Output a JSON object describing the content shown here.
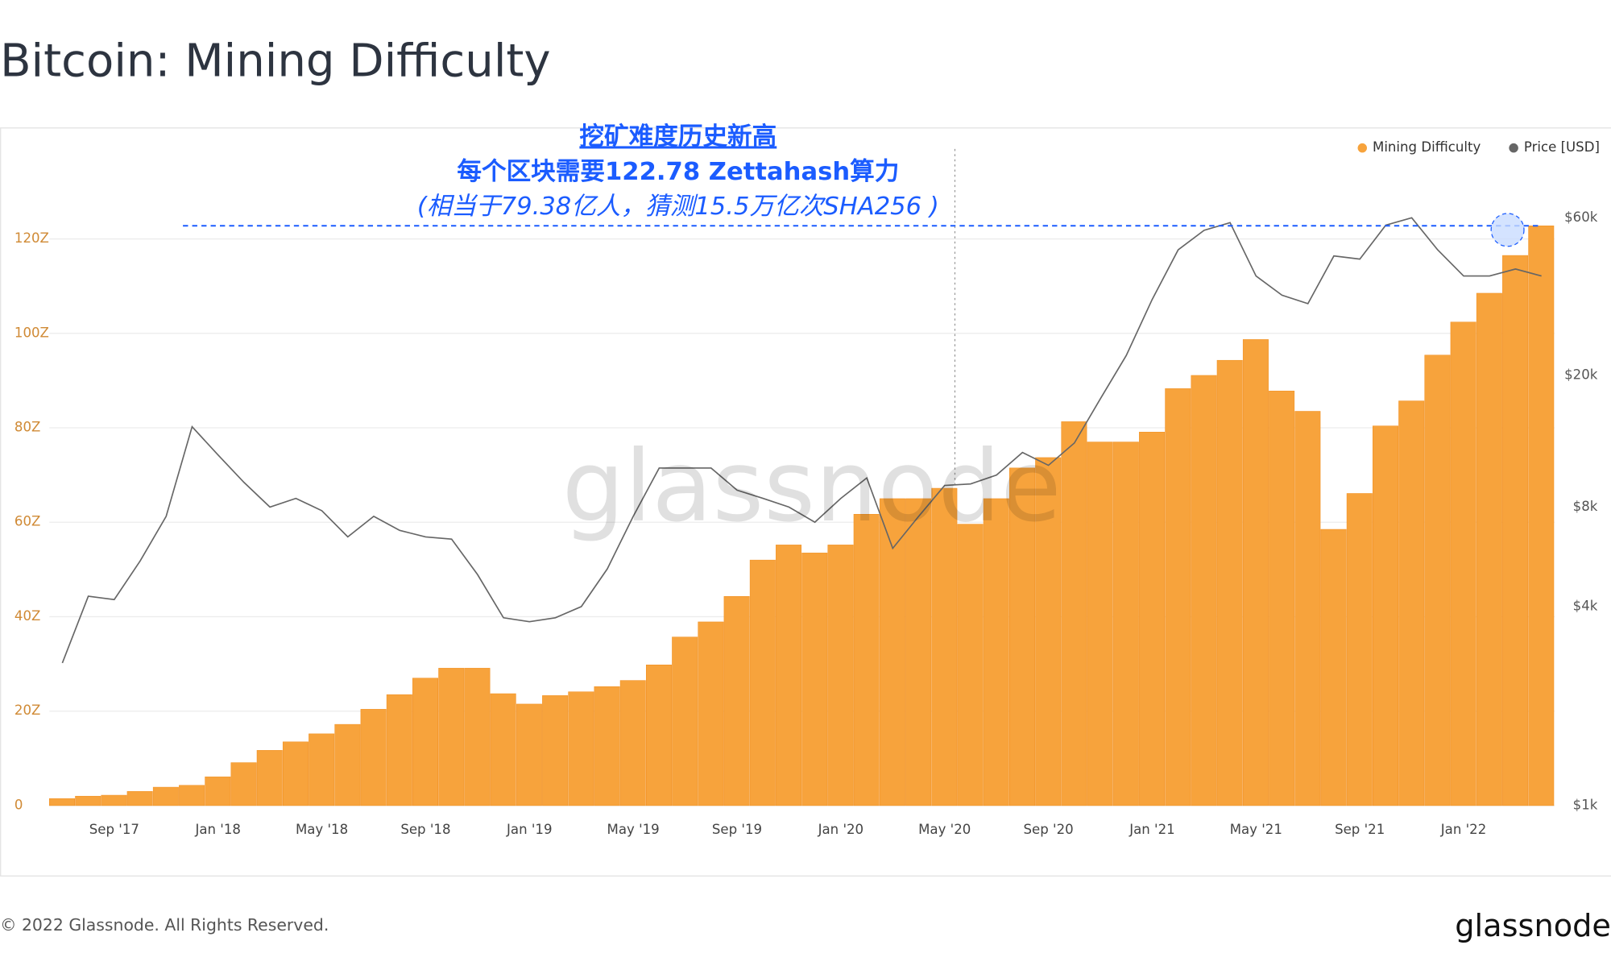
{
  "chart_data": {
    "type": "bar",
    "title": "Bitcoin: Mining Difficulty",
    "annotation": {
      "title": "挖矿难度历史新高",
      "line1": "每个区块需要122.78 Zettahash算力",
      "line2": "(相当于79.38亿人，猜测15.5万亿次SHA256 )"
    },
    "watermark": "glassnode",
    "footer": "© 2022 Glassnode. All Rights Reserved.",
    "logo": "glassnode",
    "legend": "top-right",
    "grid": true,
    "y2scale": "log",
    "x": [
      "2017-07",
      "2017-08",
      "2017-09",
      "2017-10",
      "2017-11",
      "2017-12",
      "2018-01",
      "2018-02",
      "2018-03",
      "2018-04",
      "2018-05",
      "2018-06",
      "2018-07",
      "2018-08",
      "2018-09",
      "2018-10",
      "2018-11",
      "2018-12",
      "2019-01",
      "2019-02",
      "2019-03",
      "2019-04",
      "2019-05",
      "2019-06",
      "2019-07",
      "2019-08",
      "2019-09",
      "2019-10",
      "2019-11",
      "2019-12",
      "2020-01",
      "2020-02",
      "2020-03",
      "2020-04",
      "2020-05",
      "2020-06",
      "2020-07",
      "2020-08",
      "2020-09",
      "2020-10",
      "2020-11",
      "2020-12",
      "2021-01",
      "2021-02",
      "2021-03",
      "2021-04",
      "2021-05",
      "2021-06",
      "2021-07",
      "2021-08",
      "2021-09",
      "2021-10",
      "2021-11",
      "2021-12",
      "2022-01",
      "2022-02",
      "2022-03",
      "2022-04"
    ],
    "series": [
      {
        "name": "Mining Difficulty",
        "color": "#f7a33c",
        "values": [
          1.5,
          2,
          2.2,
          3,
          3.9,
          4.3,
          6.1,
          9.1,
          11.7,
          13.5,
          15.2,
          17.2,
          20.4,
          23.5,
          27,
          29.1,
          29.1,
          23.7,
          21.5,
          23.3,
          24.1,
          25.2,
          26.5,
          29.8,
          35.7,
          38.9,
          44.3,
          52,
          55.2,
          53.5,
          55.2,
          61.7,
          65,
          65,
          67.2,
          59.6,
          65,
          71.5,
          73.7,
          81.3,
          77,
          77,
          79.1,
          88.3,
          91.1,
          94.3,
          98.7,
          87.8,
          83.5,
          58.5,
          66.1,
          80.4,
          85.7,
          95.4,
          102.4,
          108.5,
          116.5,
          122.78
        ]
      },
      {
        "name": "Price [USD]",
        "color": "#666666",
        "type": "line",
        "axis": "y2",
        "values": [
          2700,
          4300,
          4200,
          5500,
          7500,
          14000,
          11500,
          9500,
          8000,
          8500,
          7800,
          6500,
          7500,
          6800,
          6500,
          6400,
          5000,
          3700,
          3600,
          3700,
          4000,
          5200,
          7500,
          10500,
          10500,
          10500,
          9000,
          8500,
          8000,
          7200,
          8500,
          9800,
          6000,
          7500,
          9300,
          9400,
          10000,
          11700,
          10700,
          12500,
          17000,
          23000,
          34000,
          48000,
          55000,
          58000,
          40000,
          35000,
          33000,
          46000,
          45000,
          57000,
          60000,
          48000,
          40000,
          40000,
          42000,
          40000
        ]
      }
    ],
    "ylim": [
      0,
      140
    ],
    "yticks": [
      0,
      {
        "value": 20,
        "label": "20Z"
      },
      {
        "value": 40,
        "label": "40Z"
      },
      {
        "value": 60,
        "label": "60Z"
      },
      {
        "value": 80,
        "label": "80Z"
      },
      {
        "value": 100,
        "label": "100Z"
      },
      {
        "value": 120,
        "label": "120Z"
      }
    ],
    "y2lim": [
      1000,
      100000
    ],
    "y2ticks": [
      {
        "value": 1000,
        "label": "$1k"
      },
      {
        "value": 4000,
        "label": "$4k"
      },
      {
        "value": 8000,
        "label": "$8k"
      },
      {
        "value": 20000,
        "label": "$20k"
      },
      {
        "value": 60000,
        "label": "$60k"
      }
    ],
    "xticks": [
      {
        "value": "2017-09",
        "label": "Sep '17"
      },
      {
        "value": "2018-01",
        "label": "Jan '18"
      },
      {
        "value": "2018-05",
        "label": "May '18"
      },
      {
        "value": "2018-09",
        "label": "Sep '18"
      },
      {
        "value": "2019-01",
        "label": "Jan '19"
      },
      {
        "value": "2019-05",
        "label": "May '19"
      },
      {
        "value": "2019-09",
        "label": "Sep '19"
      },
      {
        "value": "2020-01",
        "label": "Jan '20"
      },
      {
        "value": "2020-05",
        "label": "May '20"
      },
      {
        "value": "2020-09",
        "label": "Sep '20"
      },
      {
        "value": "2021-01",
        "label": "Jan '21"
      },
      {
        "value": "2021-05",
        "label": "May '21"
      },
      {
        "value": "2021-09",
        "label": "Sep '21"
      },
      {
        "value": "2022-01",
        "label": "Jan '22"
      }
    ]
  }
}
